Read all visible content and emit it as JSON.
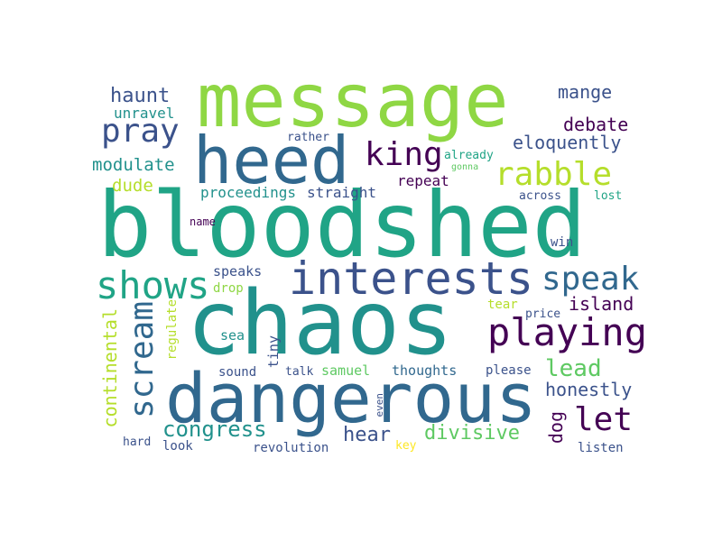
{
  "word_cloud": {
    "colors": {
      "background": "#ffffff",
      "dark_purple": "#440154",
      "indigo": "#3b528b",
      "blue": "#31688e",
      "teal": "#21918c",
      "green_teal": "#20a486",
      "green": "#5ec962",
      "light_green": "#8fd744",
      "yellow_green": "#b5de2b",
      "yellow": "#fde725"
    },
    "words": {
      "bloodshed": "bloodshed",
      "chaos": "chaos",
      "message": "message",
      "heed": "heed",
      "dangerous": "dangerous",
      "interests": "interests",
      "shows": "shows",
      "scream": "scream",
      "playing": "playing",
      "rabble": "rabble",
      "speak": "speak",
      "king": "king",
      "pray": "pray",
      "let": "let",
      "lead": "lead",
      "haunt": "haunt",
      "mange": "mange",
      "debate": "debate",
      "eloquently": "eloquently",
      "modulate": "modulate",
      "unravel": "unravel",
      "dude": "dude",
      "proceedings": "proceedings",
      "straight": "straight",
      "repeat": "repeat",
      "rather": "rather",
      "already": "already",
      "gonna": "gonna",
      "across": "across",
      "lost": "lost",
      "name": "name",
      "win": "win",
      "island": "island",
      "price": "price",
      "tear": "tear",
      "honestly": "honestly",
      "continental": "continental",
      "regulate": "regulate",
      "speaks": "speaks",
      "drop": "drop",
      "sea": "sea",
      "tiny": "tiny",
      "sound": "sound",
      "talk": "talk",
      "samuel": "samuel",
      "thoughts": "thoughts",
      "please": "please",
      "congress": "congress",
      "hear": "hear",
      "divisive": "divisive",
      "dog": "dog",
      "even": "even",
      "hard": "hard",
      "look": "look",
      "revolution": "revolution",
      "key": "key",
      "listen": "listen"
    }
  }
}
